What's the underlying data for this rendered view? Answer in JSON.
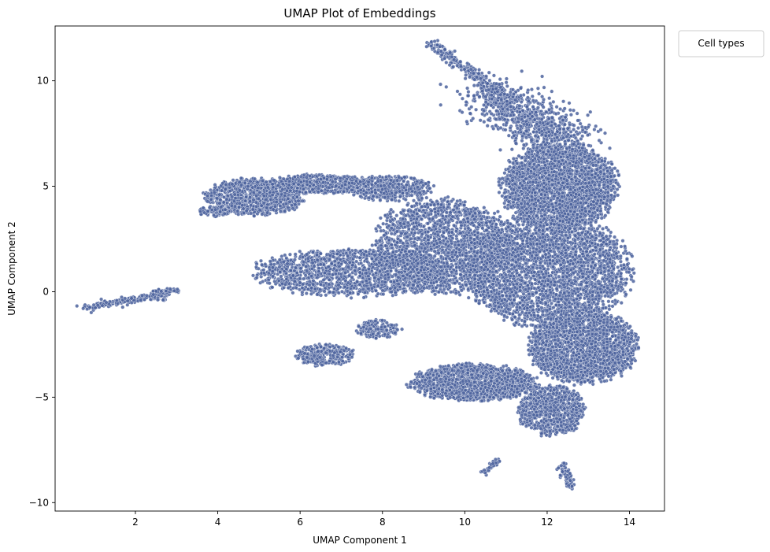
{
  "chart_data": {
    "type": "scatter",
    "title": "UMAP Plot of Embeddings",
    "xlabel": "UMAP Component 1",
    "ylabel": "UMAP Component 2",
    "xlim": [
      0.05,
      14.85
    ],
    "ylim": [
      -10.4,
      12.6
    ],
    "xticks": [
      2,
      4,
      6,
      8,
      10,
      12,
      14
    ],
    "yticks": [
      -10,
      -5,
      0,
      5,
      10
    ],
    "ytick_labels": [
      "−10",
      "−5",
      "0",
      "5",
      "10"
    ],
    "grid": false,
    "legend": {
      "title": "Cell types",
      "placement": "outside-top-right",
      "entries": []
    },
    "point_color": "#4c639e",
    "point_edge": "#ffffff",
    "clusters": [
      {
        "shape": "line",
        "from": [
          0.75,
          -0.75
        ],
        "to": [
          2.5,
          -0.2
        ],
        "width": 0.15,
        "n": 180
      },
      {
        "shape": "ellipse",
        "center": [
          2.6,
          -0.15
        ],
        "radius": [
          0.25,
          0.3
        ],
        "n": 70
      },
      {
        "shape": "line",
        "from": [
          2.7,
          0.0
        ],
        "to": [
          3.0,
          0.1
        ],
        "width": 0.1,
        "n": 30
      },
      {
        "shape": "ellipse",
        "center": [
          6.6,
          -3.0
        ],
        "radius": [
          0.7,
          0.5
        ],
        "n": 320
      },
      {
        "shape": "ellipse",
        "center": [
          7.9,
          -1.8
        ],
        "radius": [
          0.55,
          0.45
        ],
        "n": 160
      },
      {
        "shape": "line",
        "from": [
          10.45,
          -8.55
        ],
        "to": [
          10.8,
          -8.0
        ],
        "width": 0.1,
        "n": 50
      },
      {
        "shape": "line",
        "from": [
          12.35,
          -8.2
        ],
        "to": [
          12.6,
          -9.35
        ],
        "width": 0.12,
        "n": 70
      },
      {
        "shape": "line",
        "from": [
          9.2,
          11.8
        ],
        "to": [
          11.0,
          9.2
        ],
        "width": 0.2,
        "n": 260
      },
      {
        "shape": "line",
        "from": [
          10.5,
          9.5
        ],
        "to": [
          12.5,
          7.0
        ],
        "width": 0.9,
        "n": 900
      },
      {
        "shape": "ellipse",
        "center": [
          4.9,
          4.5
        ],
        "radius": [
          1.2,
          0.85
        ],
        "n": 950
      },
      {
        "shape": "ellipse",
        "center": [
          3.9,
          3.8
        ],
        "radius": [
          0.35,
          0.25
        ],
        "n": 80
      },
      {
        "shape": "ellipse",
        "center": [
          6.5,
          5.1
        ],
        "radius": [
          1.3,
          0.45
        ],
        "n": 600
      },
      {
        "shape": "ellipse",
        "center": [
          8.2,
          4.9
        ],
        "radius": [
          1.0,
          0.6
        ],
        "n": 450
      },
      {
        "shape": "ellipse",
        "center": [
          7.3,
          0.9
        ],
        "radius": [
          2.4,
          1.1
        ],
        "n": 1500
      },
      {
        "shape": "ellipse",
        "center": [
          9.5,
          2.2
        ],
        "radius": [
          1.7,
          2.2
        ],
        "n": 1900
      },
      {
        "shape": "ellipse",
        "center": [
          12.3,
          5.0
        ],
        "radius": [
          1.4,
          2.0
        ],
        "n": 2600
      },
      {
        "shape": "ellipse",
        "center": [
          12.0,
          1.0
        ],
        "radius": [
          2.0,
          2.6
        ],
        "n": 3200
      },
      {
        "shape": "ellipse",
        "center": [
          12.9,
          -2.6
        ],
        "radius": [
          1.3,
          1.7
        ],
        "n": 2200
      },
      {
        "shape": "ellipse",
        "center": [
          10.2,
          -4.3
        ],
        "radius": [
          1.5,
          0.85
        ],
        "n": 1700
      },
      {
        "shape": "ellipse",
        "center": [
          12.1,
          -5.6
        ],
        "radius": [
          0.8,
          1.2
        ],
        "n": 900
      }
    ]
  }
}
